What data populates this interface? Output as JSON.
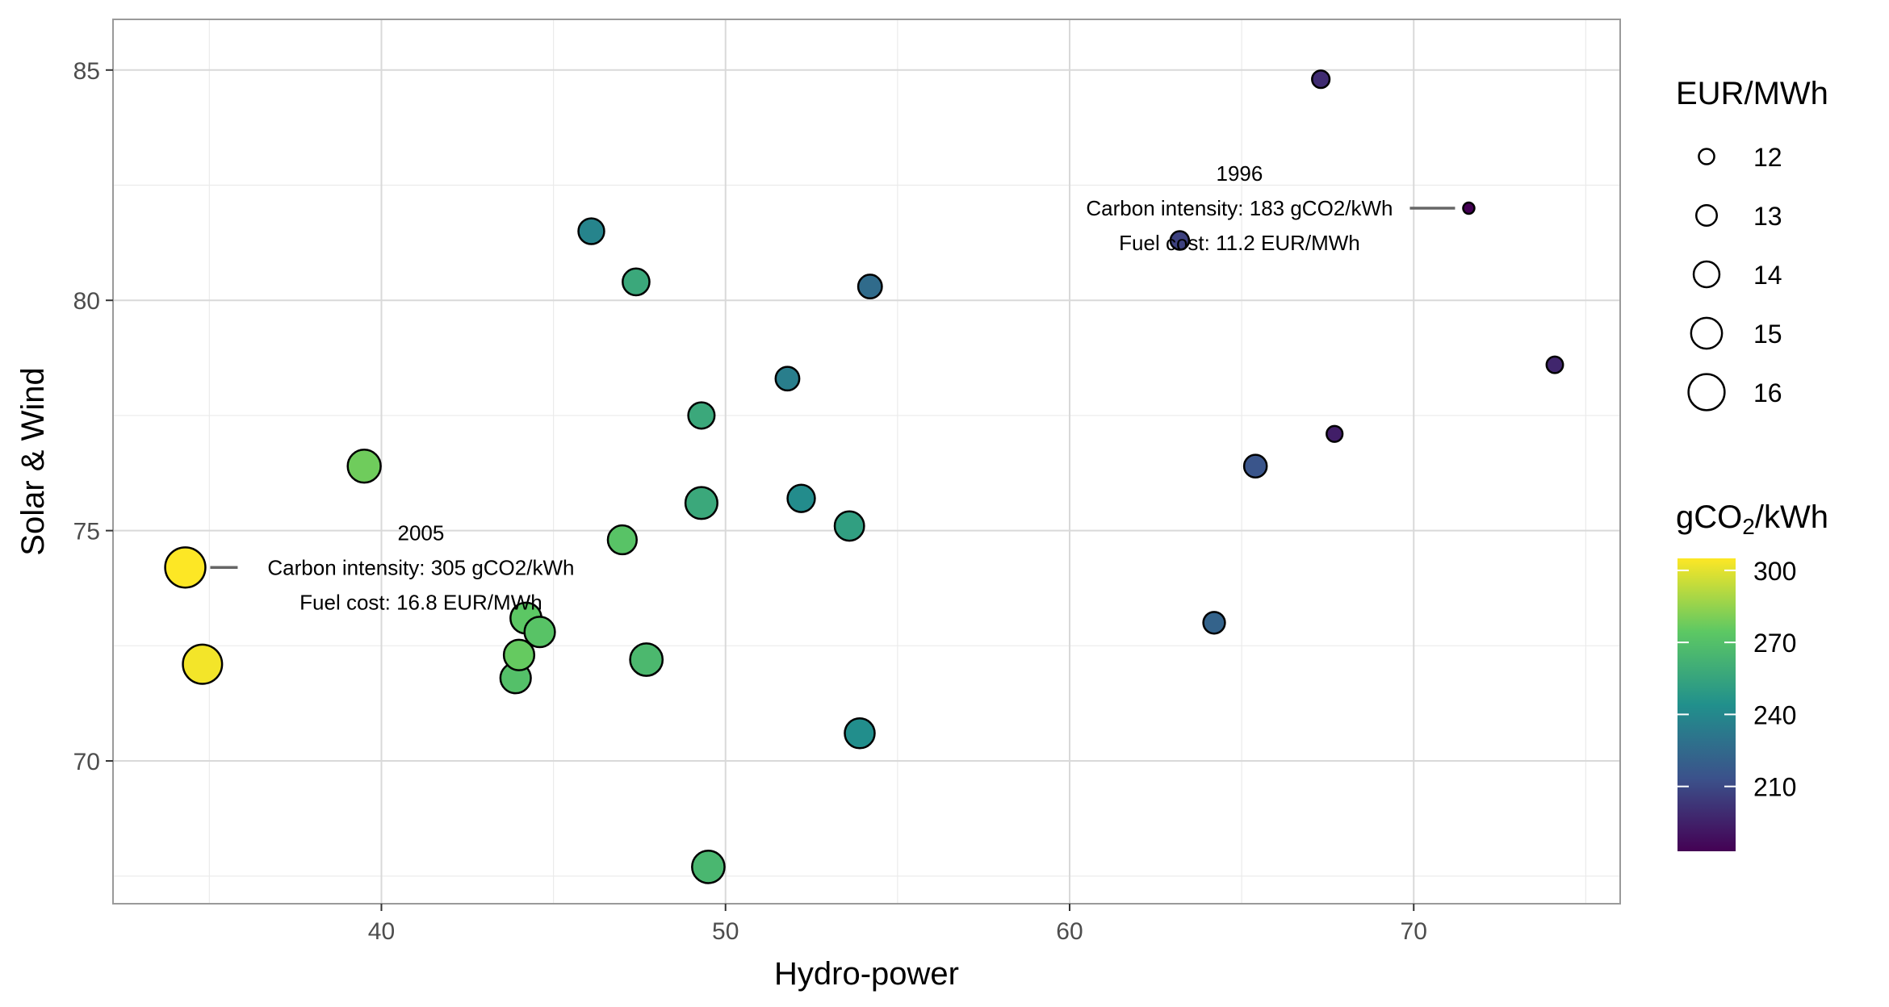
{
  "chart_data": {
    "type": "scatter",
    "xlabel": "Hydro-power",
    "ylabel": "Solar & Wind",
    "xlim": [
      32.2,
      76.0
    ],
    "ylim": [
      66.9,
      86.1
    ],
    "x_ticks": [
      40,
      50,
      60,
      70
    ],
    "y_ticks": [
      70,
      75,
      80,
      85
    ],
    "grid": true,
    "size_legend": {
      "title": "EUR/MWh",
      "values": [
        "12",
        "13",
        "14",
        "15",
        "16"
      ]
    },
    "color_legend": {
      "title_prefix": "gCO",
      "title_sub": "2",
      "title_suffix": "/kWh",
      "ticks": [
        "300",
        "270",
        "240",
        "210"
      ],
      "range": [
        183,
        305
      ],
      "colors": [
        "#440154",
        "#3b528b",
        "#21908c",
        "#5dc863",
        "#fde725"
      ]
    },
    "points": [
      {
        "x": 34.3,
        "y": 74.2,
        "carbon": 305,
        "fuel": 16.8
      },
      {
        "x": 34.8,
        "y": 72.1,
        "carbon": 303,
        "fuel": 16.6
      },
      {
        "x": 39.5,
        "y": 76.4,
        "carbon": 278,
        "fuel": 15.4
      },
      {
        "x": 43.9,
        "y": 71.8,
        "carbon": 270,
        "fuel": 14.9
      },
      {
        "x": 44.0,
        "y": 72.3,
        "carbon": 276,
        "fuel": 14.9
      },
      {
        "x": 44.2,
        "y": 73.1,
        "carbon": 274,
        "fuel": 15.0
      },
      {
        "x": 44.6,
        "y": 72.8,
        "carbon": 272,
        "fuel": 14.9
      },
      {
        "x": 46.1,
        "y": 81.5,
        "carbon": 238,
        "fuel": 14.0
      },
      {
        "x": 47.0,
        "y": 74.8,
        "carbon": 272,
        "fuel": 14.6
      },
      {
        "x": 47.4,
        "y": 80.4,
        "carbon": 257,
        "fuel": 14.2
      },
      {
        "x": 47.7,
        "y": 72.2,
        "carbon": 266,
        "fuel": 15.3
      },
      {
        "x": 49.3,
        "y": 77.5,
        "carbon": 257,
        "fuel": 14.1
      },
      {
        "x": 49.3,
        "y": 75.6,
        "carbon": 257,
        "fuel": 15.2
      },
      {
        "x": 49.5,
        "y": 67.7,
        "carbon": 265,
        "fuel": 15.3
      },
      {
        "x": 51.8,
        "y": 78.3,
        "carbon": 235,
        "fuel": 13.6
      },
      {
        "x": 52.2,
        "y": 75.7,
        "carbon": 242,
        "fuel": 14.3
      },
      {
        "x": 53.6,
        "y": 75.1,
        "carbon": 252,
        "fuel": 14.7
      },
      {
        "x": 53.9,
        "y": 70.6,
        "carbon": 243,
        "fuel": 14.8
      },
      {
        "x": 54.2,
        "y": 80.3,
        "carbon": 226,
        "fuel": 13.6
      },
      {
        "x": 63.2,
        "y": 81.3,
        "carbon": 207,
        "fuel": 12.6
      },
      {
        "x": 64.2,
        "y": 73.0,
        "carbon": 222,
        "fuel": 13.2
      },
      {
        "x": 65.4,
        "y": 76.4,
        "carbon": 215,
        "fuel": 13.4
      },
      {
        "x": 67.3,
        "y": 84.8,
        "carbon": 199,
        "fuel": 12.4
      },
      {
        "x": 67.7,
        "y": 77.1,
        "carbon": 194,
        "fuel": 12.1
      },
      {
        "x": 71.6,
        "y": 82.0,
        "carbon": 183,
        "fuel": 11.2
      },
      {
        "x": 74.1,
        "y": 78.6,
        "carbon": 197,
        "fuel": 12.2
      }
    ],
    "annotations": [
      {
        "year": "2005",
        "line1": "Carbon intensity: 305 gCO2/kWh",
        "line2": "Fuel cost: 16.8 EUR/MWh",
        "point_index": 0,
        "side": "right"
      },
      {
        "year": "1996",
        "line1": "Carbon intensity: 183 gCO2/kWh",
        "line2": "Fuel cost: 11.2 EUR/MWh",
        "point_index": 24,
        "side": "left"
      }
    ]
  }
}
